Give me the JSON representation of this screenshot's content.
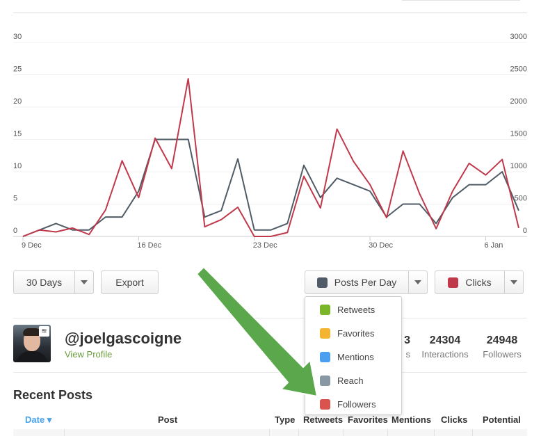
{
  "toolbar": {
    "range_label": "30 Days",
    "export_label": "Export",
    "metric_left_label": "Posts Per Day",
    "metric_right_label": "Clicks"
  },
  "dropdown": {
    "items": [
      {
        "label": "Retweets",
        "color": "#7ab628"
      },
      {
        "label": "Favorites",
        "color": "#f3b430"
      },
      {
        "label": "Mentions",
        "color": "#4a9ff0"
      },
      {
        "label": "Reach",
        "color": "#8899a5"
      },
      {
        "label": "Followers",
        "color": "#d9534f"
      }
    ]
  },
  "colors": {
    "posts_swatch": "#4f5b66",
    "clicks_swatch": "#c0394b",
    "arrow": "#5aa84b"
  },
  "profile": {
    "handle": "@joelgascoigne",
    "view_profile": "View Profile",
    "stats": [
      {
        "value": "3",
        "label": "s"
      },
      {
        "value": "24304",
        "label": "Interactions"
      },
      {
        "value": "24948",
        "label": "Followers"
      }
    ]
  },
  "recent_posts": {
    "title": "Recent Posts",
    "columns": [
      "Date ▾",
      "Post",
      "Type",
      "Retweets",
      "Favorites",
      "Mentions",
      "Clicks",
      "Potential"
    ]
  },
  "chart_data": {
    "type": "line",
    "x_tick_labels": [
      "9 Dec",
      "16 Dec",
      "23 Dec",
      "30 Dec",
      "6 Jan"
    ],
    "y_left_ticks": [
      0,
      5,
      10,
      15,
      20,
      25,
      30
    ],
    "y_right_ticks": [
      0,
      500,
      1000,
      1500,
      2000,
      2500,
      3000
    ],
    "ylim_left": [
      0,
      30
    ],
    "ylim_right": [
      0,
      3000
    ],
    "grid": true,
    "series": [
      {
        "name": "Posts Per Day",
        "axis": "left",
        "color": "#4f5b66",
        "values": [
          0,
          1,
          2,
          1,
          1,
          3,
          3,
          7,
          15,
          15,
          15,
          3,
          4,
          12,
          1,
          1,
          2,
          11,
          6,
          9,
          8,
          7,
          3,
          5,
          5,
          2,
          6,
          8,
          8,
          10,
          4
        ]
      },
      {
        "name": "Clicks",
        "axis": "right",
        "color": "#c0394b",
        "values": [
          0,
          100,
          70,
          130,
          30,
          410,
          1170,
          600,
          1520,
          1050,
          2440,
          150,
          260,
          450,
          0,
          0,
          60,
          930,
          440,
          1660,
          1160,
          800,
          290,
          1320,
          660,
          120,
          700,
          1130,
          950,
          1190,
          130
        ]
      }
    ]
  }
}
